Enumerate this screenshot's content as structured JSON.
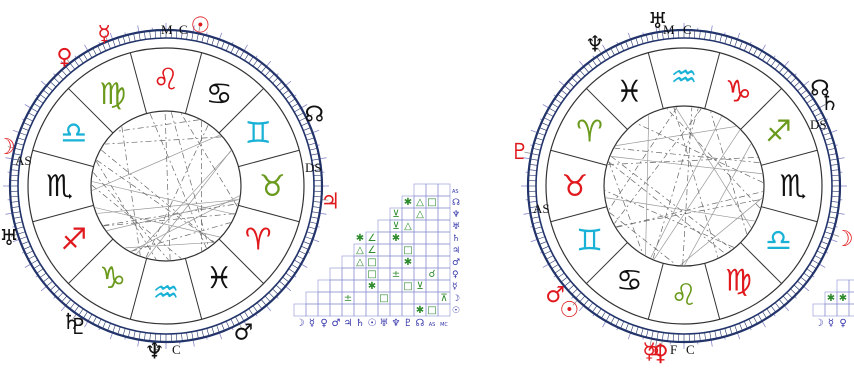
{
  "colors": {
    "ring": "#23346b",
    "tick": "#8888cc",
    "grid": "#8a8fd0",
    "fire": "#e0191e",
    "earth": "#6a9a1c",
    "air": "#19b2d6",
    "water": "#111111",
    "aspect_red": "#e0191e",
    "aspect_green": "#2e8b2e",
    "aspect_blue": "#3333aa"
  },
  "charts": [
    {
      "angle_labels": {
        "mc": "M",
        "mc2": "C",
        "ic": "F",
        "ic2": "C",
        "as": "AS",
        "ds": "DS"
      },
      "signs": [
        {
          "glyph": "♋︎",
          "element": "water"
        },
        {
          "glyph": "♊︎",
          "element": "air"
        },
        {
          "glyph": "♉︎",
          "element": "earth"
        },
        {
          "glyph": "♈︎",
          "element": "fire"
        },
        {
          "glyph": "♓︎",
          "element": "water"
        },
        {
          "glyph": "♒︎",
          "element": "air"
        },
        {
          "glyph": "♑︎",
          "element": "earth"
        },
        {
          "glyph": "♐︎",
          "element": "fire"
        },
        {
          "glyph": "♏︎",
          "element": "water"
        },
        {
          "glyph": "♎︎",
          "element": "air"
        },
        {
          "glyph": "♍︎",
          "element": "earth"
        },
        {
          "glyph": "♌︎",
          "element": "fire"
        }
      ],
      "planets": [
        {
          "glyph": "♀︎",
          "color": "fire"
        },
        {
          "glyph": "☿︎",
          "color": "fire"
        },
        {
          "glyph": "☉︎",
          "color": "fire"
        },
        {
          "glyph": "☊︎",
          "color": "water"
        },
        {
          "glyph": "♃︎",
          "color": "fire"
        },
        {
          "glyph": "♂︎",
          "color": "water"
        },
        {
          "glyph": "♆︎",
          "color": "water"
        },
        {
          "glyph": "♇︎",
          "color": "water"
        },
        {
          "glyph": "♄︎",
          "color": "water"
        },
        {
          "glyph": "♅︎",
          "color": "water"
        },
        {
          "glyph": "☽︎",
          "color": "fire"
        }
      ]
    },
    {
      "angle_labels": {
        "mc": "M",
        "mc2": "C",
        "ic": "F",
        "ic2": "C",
        "as": "AS",
        "ds": "DS"
      },
      "signs": [
        {
          "glyph": "♑︎",
          "element": "fire"
        },
        {
          "glyph": "♐︎",
          "element": "earth"
        },
        {
          "glyph": "♏︎",
          "element": "water"
        },
        {
          "glyph": "♎︎",
          "element": "air"
        },
        {
          "glyph": "♍︎",
          "element": "fire"
        },
        {
          "glyph": "♌︎",
          "element": "earth"
        },
        {
          "glyph": "♋︎",
          "element": "water"
        },
        {
          "glyph": "♊︎",
          "element": "air"
        },
        {
          "glyph": "♉︎",
          "element": "fire"
        },
        {
          "glyph": "♈︎",
          "element": "earth"
        },
        {
          "glyph": "♓︎",
          "element": "water"
        },
        {
          "glyph": "♒︎",
          "element": "air"
        }
      ],
      "planets": [
        {
          "glyph": "♅︎",
          "color": "water"
        },
        {
          "glyph": "☊︎",
          "color": "water"
        },
        {
          "glyph": "♄︎",
          "color": "water"
        },
        {
          "glyph": "☽︎",
          "color": "fire"
        },
        {
          "glyph": "♀︎",
          "color": "fire"
        },
        {
          "glyph": "☿︎",
          "color": "fire"
        },
        {
          "glyph": "♃︎",
          "color": "fire"
        },
        {
          "glyph": "☉︎",
          "color": "fire"
        },
        {
          "glyph": "♂︎",
          "color": "fire"
        },
        {
          "glyph": "♇︎",
          "color": "fire"
        },
        {
          "glyph": "♆︎",
          "color": "water"
        }
      ]
    }
  ],
  "aspect_grid": {
    "row_labels": [
      "AS",
      "☊",
      "♆",
      "♅",
      "♄",
      "♃",
      "♂",
      "♀",
      "☿",
      "☽",
      "☉"
    ],
    "col_labels": [
      "☽",
      "☿",
      "♀",
      "♂",
      "♃",
      "♄",
      "☉",
      "♅",
      "♆",
      "♇",
      "☊",
      "AS",
      "MC"
    ],
    "cells": [
      {
        "g": "✱",
        "c": "aspect_green"
      },
      {
        "g": "△",
        "c": "aspect_green"
      },
      {
        "g": "□",
        "c": "aspect_green"
      },
      {
        "g": "⊻",
        "c": "aspect_green"
      },
      {
        "g": "△",
        "c": "aspect_green"
      },
      {
        "g": "⊻",
        "c": "aspect_green"
      },
      {
        "g": "△",
        "c": "aspect_green"
      },
      {
        "g": "✱",
        "c": "aspect_green"
      },
      {
        "g": "∠",
        "c": "aspect_green"
      },
      {
        "g": "✱",
        "c": "aspect_green"
      },
      {
        "g": "△",
        "c": "aspect_green"
      },
      {
        "g": "∠",
        "c": "aspect_green"
      },
      {
        "g": "□",
        "c": "aspect_green"
      },
      {
        "g": "△",
        "c": "aspect_green"
      },
      {
        "g": "□",
        "c": "aspect_green"
      },
      {
        "g": "✱",
        "c": "aspect_green"
      },
      {
        "g": "□",
        "c": "aspect_green"
      },
      {
        "g": "±",
        "c": "aspect_green"
      },
      {
        "g": "☌",
        "c": "aspect_green"
      },
      {
        "g": "✱",
        "c": "aspect_green"
      },
      {
        "g": "□",
        "c": "aspect_green"
      },
      {
        "g": "⊻",
        "c": "aspect_green"
      },
      {
        "g": "±",
        "c": "aspect_green"
      },
      {
        "g": "□",
        "c": "aspect_green"
      },
      {
        "g": "⊼",
        "c": "aspect_green"
      },
      {
        "g": "✱",
        "c": "aspect_green"
      },
      {
        "g": "□",
        "c": "aspect_green"
      }
    ]
  },
  "aspect_grid_partial": {
    "col_labels": [
      "☽",
      "☿",
      "♀"
    ],
    "cells": [
      {
        "g": "✱",
        "c": "aspect_green"
      },
      {
        "g": "✱",
        "c": "aspect_green"
      }
    ]
  }
}
